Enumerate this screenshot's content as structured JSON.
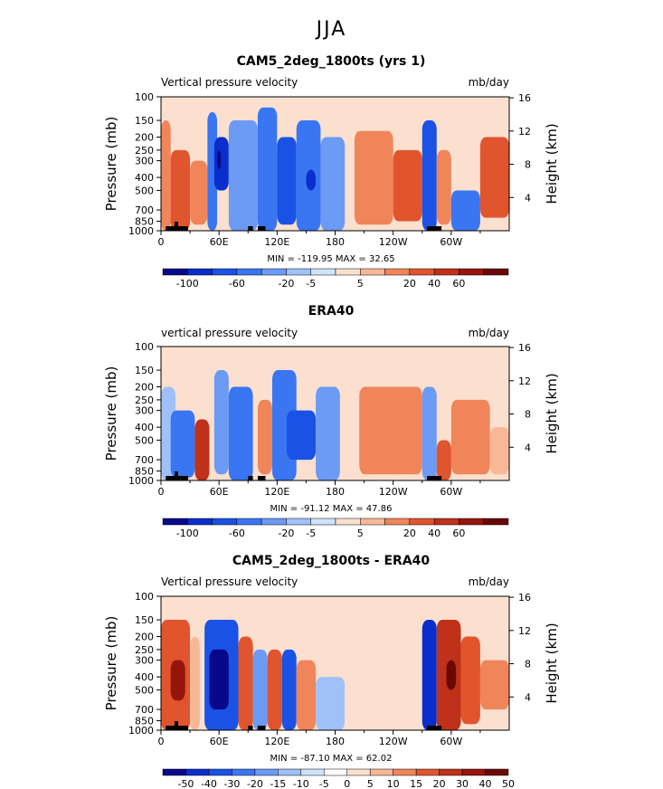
{
  "super_title": "JJA",
  "colorbar_colors": [
    "#08088a",
    "#0a2ecc",
    "#1a52e6",
    "#3a76f2",
    "#6b9bf5",
    "#9fc1f7",
    "#cfe3fa",
    "#fbe0cf",
    "#f8b896",
    "#f0855a",
    "#e0552e",
    "#c0311a",
    "#96150d",
    "#6a0808"
  ],
  "diff_colors": [
    "#08088a",
    "#0a2ecc",
    "#1a52e6",
    "#3a76f2",
    "#6b9bf5",
    "#9fc1f7",
    "#cfe3fa",
    "#ffffff",
    "#fbe0cf",
    "#f8b896",
    "#f0855a",
    "#e0552e",
    "#c0311a",
    "#96150d",
    "#6a0808"
  ],
  "chart_data": [
    {
      "type": "heatmap",
      "title": "CAM5_2deg_1800ts (yrs 1)",
      "left_label": "Vertical pressure velocity",
      "units": "mb/day",
      "ylabel": "Pressure (mb)",
      "ylabel_right": "Height (km)",
      "x_ticks": [
        "0",
        "60E",
        "120E",
        "180",
        "120W",
        "60W"
      ],
      "x_tick_lon": [
        0,
        60,
        120,
        180,
        240,
        300
      ],
      "xlim": [
        0,
        360
      ],
      "y_ticks": [
        "100",
        "150",
        "200",
        "250",
        "300",
        "400",
        "500",
        "700",
        "850",
        "1000"
      ],
      "y_tick_p": [
        100,
        150,
        200,
        250,
        300,
        400,
        500,
        700,
        850,
        1000
      ],
      "height_ticks": [
        "4",
        "8",
        "12",
        "16"
      ],
      "height_tick_km": [
        4,
        8,
        12,
        16
      ],
      "min_max": "MIN = -119.95   MAX =  32.65",
      "colorbar_labels": [
        "-100",
        "-60",
        "-20",
        "-5",
        "5",
        "20",
        "40",
        "60"
      ],
      "colorbar_label_index": [
        1,
        3,
        5,
        6,
        8,
        10,
        11,
        12
      ],
      "bands": [
        {
          "lon": [
            0,
            10
          ],
          "p": [
            150,
            1000
          ],
          "level": 9
        },
        {
          "lon": [
            10,
            30
          ],
          "p": [
            250,
            1000
          ],
          "level": 10
        },
        {
          "lon": [
            30,
            48
          ],
          "p": [
            300,
            900
          ],
          "level": 9
        },
        {
          "lon": [
            48,
            58
          ],
          "p": [
            130,
            1000
          ],
          "level": 3
        },
        {
          "lon": [
            55,
            70
          ],
          "p": [
            200,
            500
          ],
          "level": 1
        },
        {
          "lon": [
            58,
            62
          ],
          "p": [
            250,
            350
          ],
          "level": 0
        },
        {
          "lon": [
            70,
            100
          ],
          "p": [
            150,
            1000
          ],
          "level": 4
        },
        {
          "lon": [
            100,
            120
          ],
          "p": [
            120,
            1000
          ],
          "level": 3
        },
        {
          "lon": [
            120,
            140
          ],
          "p": [
            200,
            900
          ],
          "level": 2
        },
        {
          "lon": [
            140,
            165
          ],
          "p": [
            150,
            1000
          ],
          "level": 3
        },
        {
          "lon": [
            150,
            160
          ],
          "p": [
            350,
            500
          ],
          "level": 1
        },
        {
          "lon": [
            165,
            190
          ],
          "p": [
            200,
            1000
          ],
          "level": 4
        },
        {
          "lon": [
            200,
            240
          ],
          "p": [
            180,
            900
          ],
          "level": 9
        },
        {
          "lon": [
            240,
            270
          ],
          "p": [
            250,
            850
          ],
          "level": 10
        },
        {
          "lon": [
            270,
            285
          ],
          "p": [
            150,
            1000
          ],
          "level": 2
        },
        {
          "lon": [
            285,
            300
          ],
          "p": [
            250,
            900
          ],
          "level": 9
        },
        {
          "lon": [
            300,
            330
          ],
          "p": [
            500,
            1000
          ],
          "level": 3
        },
        {
          "lon": [
            330,
            360
          ],
          "p": [
            200,
            800
          ],
          "level": 10
        }
      ]
    },
    {
      "type": "heatmap",
      "title": "ERA40",
      "left_label": "vertical pressure velocity",
      "units": "mb/day",
      "ylabel": "Pressure (mb)",
      "ylabel_right": "Height (km)",
      "x_ticks": [
        "0",
        "60E",
        "120E",
        "180",
        "120W",
        "60W"
      ],
      "x_tick_lon": [
        0,
        60,
        120,
        180,
        240,
        300
      ],
      "xlim": [
        0,
        360
      ],
      "y_ticks": [
        "100",
        "150",
        "200",
        "250",
        "300",
        "400",
        "500",
        "700",
        "850",
        "1000"
      ],
      "y_tick_p": [
        100,
        150,
        200,
        250,
        300,
        400,
        500,
        700,
        850,
        1000
      ],
      "height_ticks": [
        "4",
        "8",
        "12",
        "16"
      ],
      "height_tick_km": [
        4,
        8,
        12,
        16
      ],
      "min_max": "MIN = -91.12   MAX =  47.86",
      "colorbar_labels": [
        "-100",
        "-60",
        "-20",
        "-5",
        "5",
        "20",
        "40",
        "60"
      ],
      "colorbar_label_index": [
        1,
        3,
        5,
        6,
        8,
        10,
        11,
        12
      ],
      "bands": [
        {
          "lon": [
            0,
            15
          ],
          "p": [
            200,
            1000
          ],
          "level": 5
        },
        {
          "lon": [
            10,
            35
          ],
          "p": [
            300,
            950
          ],
          "level": 3
        },
        {
          "lon": [
            35,
            50
          ],
          "p": [
            350,
            1000
          ],
          "level": 11
        },
        {
          "lon": [
            55,
            70
          ],
          "p": [
            150,
            900
          ],
          "level": 4
        },
        {
          "lon": [
            70,
            95
          ],
          "p": [
            200,
            1000
          ],
          "level": 3
        },
        {
          "lon": [
            100,
            115
          ],
          "p": [
            250,
            900
          ],
          "level": 9
        },
        {
          "lon": [
            115,
            140
          ],
          "p": [
            150,
            1000
          ],
          "level": 3
        },
        {
          "lon": [
            130,
            160
          ],
          "p": [
            300,
            700
          ],
          "level": 2
        },
        {
          "lon": [
            160,
            185
          ],
          "p": [
            200,
            1000
          ],
          "level": 4
        },
        {
          "lon": [
            205,
            270
          ],
          "p": [
            200,
            900
          ],
          "level": 9
        },
        {
          "lon": [
            270,
            285
          ],
          "p": [
            200,
            1000
          ],
          "level": 4
        },
        {
          "lon": [
            285,
            300
          ],
          "p": [
            500,
            1000
          ],
          "level": 10
        },
        {
          "lon": [
            300,
            340
          ],
          "p": [
            250,
            900
          ],
          "level": 9
        },
        {
          "lon": [
            340,
            360
          ],
          "p": [
            400,
            900
          ],
          "level": 8
        }
      ]
    },
    {
      "type": "heatmap",
      "title": "CAM5_2deg_1800ts - ERA40",
      "left_label": "Vertical pressure velocity",
      "units": "mb/day",
      "ylabel": "Pressure (mb)",
      "ylabel_right": "Height (km)",
      "x_ticks": [
        "0",
        "60E",
        "120E",
        "180",
        "120W",
        "60W"
      ],
      "x_tick_lon": [
        0,
        60,
        120,
        180,
        240,
        300
      ],
      "xlim": [
        0,
        360
      ],
      "y_ticks": [
        "100",
        "150",
        "200",
        "250",
        "300",
        "400",
        "500",
        "700",
        "850",
        "1000"
      ],
      "y_tick_p": [
        100,
        150,
        200,
        250,
        300,
        400,
        500,
        700,
        850,
        1000
      ],
      "height_ticks": [
        "4",
        "8",
        "12",
        "16"
      ],
      "height_tick_km": [
        4,
        8,
        12,
        16
      ],
      "min_max": "MIN = -87.10   MAX =  62.02",
      "colorbar_labels": [
        "-50",
        "-40",
        "-30",
        "-20",
        "-15",
        "-10",
        "-5",
        "0",
        "5",
        "10",
        "15",
        "20",
        "30",
        "40",
        "50"
      ],
      "colorbar_label_index": [
        1,
        2,
        3,
        4,
        5,
        6,
        7,
        8,
        9,
        10,
        11,
        12,
        13,
        14,
        15
      ],
      "bands": [
        {
          "lon": [
            0,
            30
          ],
          "p": [
            150,
            1000
          ],
          "level": 11
        },
        {
          "lon": [
            10,
            25
          ],
          "p": [
            300,
            600
          ],
          "level": 13
        },
        {
          "lon": [
            30,
            40
          ],
          "p": [
            200,
            1000
          ],
          "level": 9
        },
        {
          "lon": [
            45,
            80
          ],
          "p": [
            150,
            1000
          ],
          "level": 2
        },
        {
          "lon": [
            50,
            70
          ],
          "p": [
            250,
            700
          ],
          "level": 0
        },
        {
          "lon": [
            80,
            95
          ],
          "p": [
            200,
            1000
          ],
          "level": 11
        },
        {
          "lon": [
            95,
            110
          ],
          "p": [
            250,
            1000
          ],
          "level": 4
        },
        {
          "lon": [
            110,
            125
          ],
          "p": [
            250,
            1000
          ],
          "level": 11
        },
        {
          "lon": [
            125,
            140
          ],
          "p": [
            250,
            1000
          ],
          "level": 2
        },
        {
          "lon": [
            140,
            160
          ],
          "p": [
            300,
            1000
          ],
          "level": 10
        },
        {
          "lon": [
            160,
            190
          ],
          "p": [
            400,
            1000
          ],
          "level": 5
        },
        {
          "lon": [
            190,
            270
          ],
          "p": [
            300,
            1000
          ],
          "level": 8
        },
        {
          "lon": [
            270,
            285
          ],
          "p": [
            150,
            1000
          ],
          "level": 1
        },
        {
          "lon": [
            285,
            310
          ],
          "p": [
            150,
            1000
          ],
          "level": 12
        },
        {
          "lon": [
            295,
            305
          ],
          "p": [
            300,
            500
          ],
          "level": 14
        },
        {
          "lon": [
            310,
            330
          ],
          "p": [
            200,
            900
          ],
          "level": 11
        },
        {
          "lon": [
            330,
            360
          ],
          "p": [
            300,
            700
          ],
          "level": 10
        }
      ]
    }
  ]
}
